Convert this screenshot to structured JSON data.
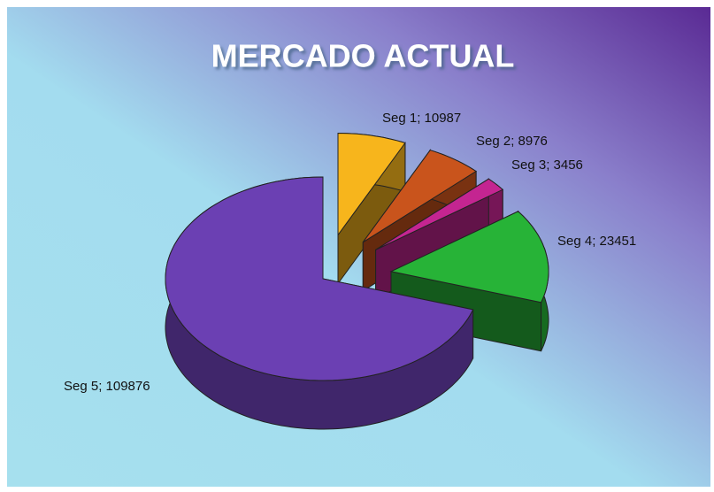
{
  "chart_data": {
    "type": "pie3d",
    "title": "MERCADO ACTUAL",
    "values": [
      10987,
      8976,
      3456,
      23451,
      109876
    ],
    "value_labels": [
      "Seg 1; 10987",
      "Seg 2; 8976",
      "Seg 3; 3456",
      "Seg 4; 23451",
      "Seg 5; 109876"
    ],
    "colors": [
      "#f7b51c",
      "#c9541c",
      "#c42591",
      "#27b337",
      "#6b40b3"
    ]
  }
}
